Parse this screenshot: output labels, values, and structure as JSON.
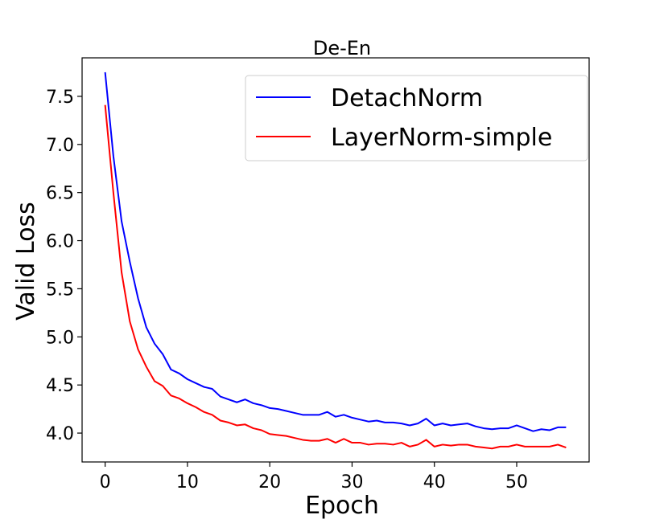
{
  "chart_data": {
    "type": "line",
    "title": "De-En",
    "xlabel": "Epoch",
    "ylabel": "Valid Loss",
    "xlim": [
      -2.8,
      58.8
    ],
    "ylim": [
      3.7,
      7.9
    ],
    "xticks": [
      0,
      10,
      20,
      30,
      40,
      50
    ],
    "yticks": [
      4.0,
      4.5,
      5.0,
      5.5,
      6.0,
      6.5,
      7.0,
      7.5
    ],
    "grid": false,
    "legend_position": "top-right",
    "x": [
      0,
      1,
      2,
      3,
      4,
      5,
      6,
      7,
      8,
      9,
      10,
      11,
      12,
      13,
      14,
      15,
      16,
      17,
      18,
      19,
      20,
      21,
      22,
      23,
      24,
      25,
      26,
      27,
      28,
      29,
      30,
      31,
      32,
      33,
      34,
      35,
      36,
      37,
      38,
      39,
      40,
      41,
      42,
      43,
      44,
      45,
      46,
      47,
      48,
      49,
      50,
      51,
      52,
      53,
      54,
      55,
      56
    ],
    "series": [
      {
        "name": "DetachNorm",
        "color": "#0000ff",
        "values": [
          7.75,
          6.88,
          6.2,
          5.78,
          5.4,
          5.1,
          4.93,
          4.82,
          4.66,
          4.62,
          4.56,
          4.52,
          4.48,
          4.46,
          4.38,
          4.35,
          4.32,
          4.35,
          4.31,
          4.29,
          4.26,
          4.25,
          4.23,
          4.21,
          4.19,
          4.19,
          4.19,
          4.22,
          4.17,
          4.19,
          4.16,
          4.14,
          4.12,
          4.13,
          4.11,
          4.11,
          4.1,
          4.08,
          4.1,
          4.15,
          4.08,
          4.1,
          4.08,
          4.09,
          4.1,
          4.07,
          4.05,
          4.04,
          4.05,
          4.05,
          4.08,
          4.05,
          4.02,
          4.04,
          4.03,
          4.06,
          4.06
        ]
      },
      {
        "name": "LayerNorm-simple",
        "color": "#ff0000",
        "values": [
          7.41,
          6.5,
          5.67,
          5.16,
          4.87,
          4.69,
          4.54,
          4.49,
          4.39,
          4.36,
          4.31,
          4.27,
          4.22,
          4.19,
          4.13,
          4.11,
          4.08,
          4.09,
          4.05,
          4.03,
          3.99,
          3.98,
          3.97,
          3.95,
          3.93,
          3.92,
          3.92,
          3.94,
          3.9,
          3.94,
          3.9,
          3.9,
          3.88,
          3.89,
          3.89,
          3.88,
          3.9,
          3.86,
          3.88,
          3.93,
          3.86,
          3.88,
          3.87,
          3.88,
          3.88,
          3.86,
          3.85,
          3.84,
          3.86,
          3.86,
          3.88,
          3.86,
          3.86,
          3.86,
          3.86,
          3.88,
          3.85
        ]
      }
    ]
  }
}
